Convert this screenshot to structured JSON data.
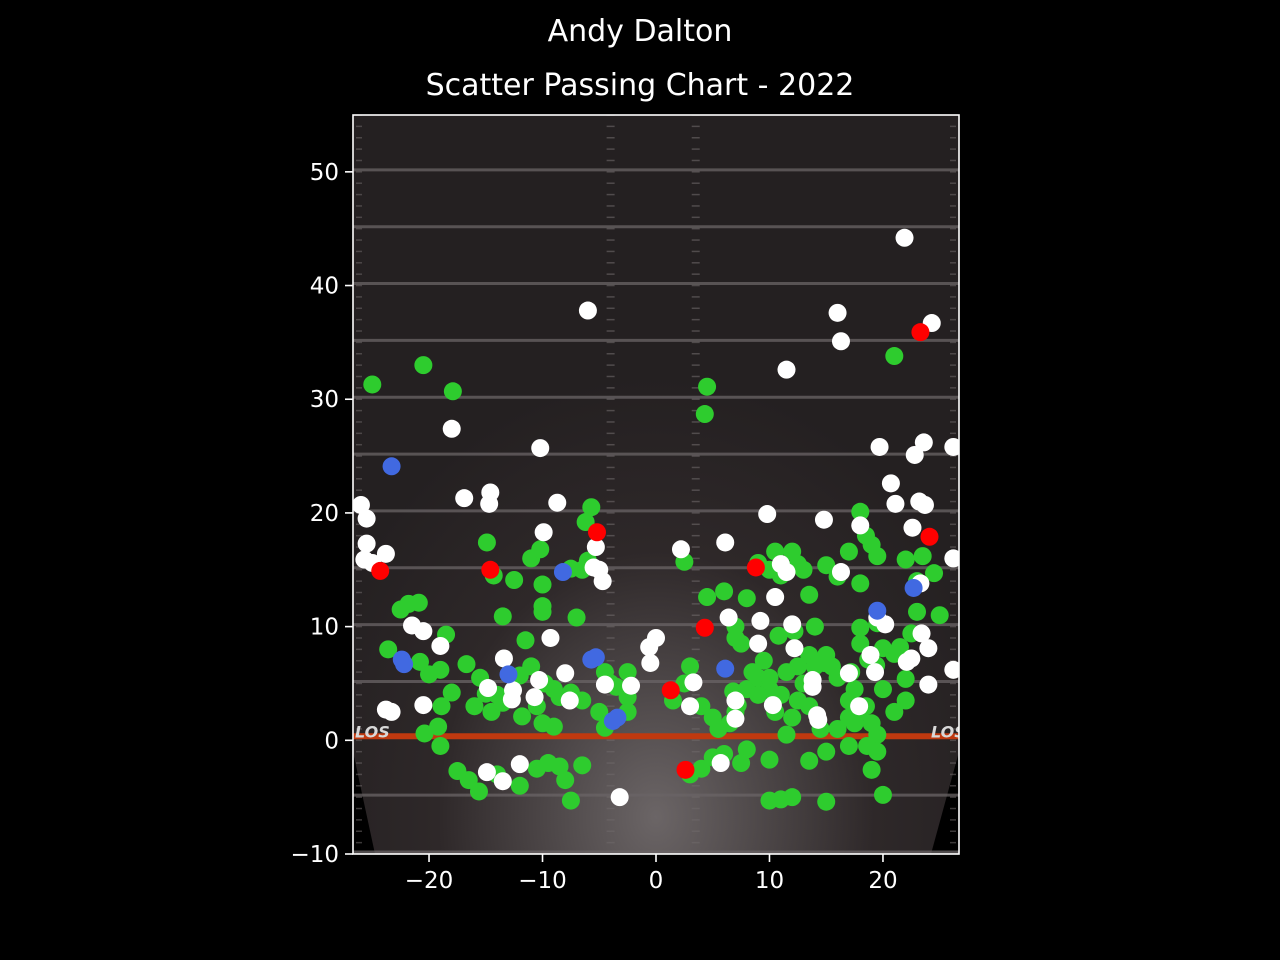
{
  "header": {
    "suptitle": "Andy Dalton",
    "title": "Scatter Passing Chart - 2022"
  },
  "field": {
    "los_text": "LOS"
  },
  "colors": {
    "complete": "#2ecc2e",
    "incomplete": "#ffffff",
    "interception": "#ff0000",
    "touchdown": "#4169e1",
    "los_line": "#c0390f",
    "yard_line": "#6a6466",
    "field_bg": "#2b2526"
  },
  "chart_data": {
    "type": "scatter",
    "title": "Scatter Passing Chart - 2022",
    "suptitle": "Andy Dalton",
    "xlabel": "",
    "ylabel": "",
    "xlim": [
      -26.7,
      26.7
    ],
    "ylim": [
      -10,
      55
    ],
    "xticks": [
      -20,
      -10,
      0,
      10,
      20
    ],
    "yticks": [
      -10,
      0,
      10,
      20,
      30,
      40,
      50
    ],
    "xtick_labels": [
      "−20",
      "−10",
      "0",
      "10",
      "20"
    ],
    "ytick_labels": [
      "−10",
      "0",
      "10",
      "20",
      "30",
      "40",
      "50"
    ],
    "grid": false,
    "legend": "none",
    "series": [
      {
        "color": "#2ecc2e",
        "points": [
          [
            -25,
            31.3
          ],
          [
            -20.5,
            33
          ],
          [
            -17.9,
            30.7
          ],
          [
            -14.9,
            17.4
          ],
          [
            -14.3,
            14.5
          ],
          [
            -12.5,
            14.1
          ],
          [
            -11,
            16
          ],
          [
            -10.2,
            16.8
          ],
          [
            -10,
            13.7
          ],
          [
            -10,
            11.8
          ],
          [
            -10,
            11.3
          ],
          [
            -7.5,
            15.1
          ],
          [
            -7,
            10.8
          ],
          [
            -6,
            15.8
          ],
          [
            -5.7,
            20.5
          ],
          [
            -6.2,
            19.2
          ],
          [
            -6.5,
            15
          ],
          [
            -21.8,
            12
          ],
          [
            -22.5,
            11.5
          ],
          [
            -20.9,
            12.1
          ],
          [
            -23.6,
            8
          ],
          [
            -20.8,
            6.9
          ],
          [
            -20,
            5.8
          ],
          [
            -18.5,
            9.3
          ],
          [
            -19,
            6.2
          ],
          [
            -15,
            4.1
          ],
          [
            -16.7,
            6.7
          ],
          [
            -13.5,
            10.9
          ],
          [
            -11.5,
            8.8
          ],
          [
            -11,
            6.5
          ],
          [
            -12,
            5.7
          ],
          [
            -10.5,
            3
          ],
          [
            -9.8,
            5
          ],
          [
            -9,
            4.5
          ],
          [
            -8.5,
            3.8
          ],
          [
            -7.5,
            4.2
          ],
          [
            -6.5,
            3.5
          ],
          [
            -5,
            2.5
          ],
          [
            -4.5,
            6
          ],
          [
            -4,
            5
          ],
          [
            -3.5,
            4.7
          ],
          [
            -2.5,
            6
          ],
          [
            -2.5,
            3.8
          ],
          [
            -4.5,
            1.1
          ],
          [
            -2.5,
            2.5
          ],
          [
            -16,
            3
          ],
          [
            -14.5,
            2.5
          ],
          [
            -13.5,
            3.3
          ],
          [
            -11.8,
            2.1
          ],
          [
            -10,
            1.5
          ],
          [
            -9,
            1.2
          ],
          [
            -20.4,
            0.6
          ],
          [
            -19.2,
            1.2
          ],
          [
            -19,
            -0.5
          ],
          [
            -17.5,
            -2.7
          ],
          [
            -16.5,
            -3.5
          ],
          [
            -15.6,
            -4.5
          ],
          [
            -14,
            -3
          ],
          [
            -12,
            -4
          ],
          [
            -10.5,
            -2.5
          ],
          [
            -9.5,
            -2
          ],
          [
            -8.5,
            -2.3
          ],
          [
            -8,
            -3.5
          ],
          [
            -7.5,
            -5.3
          ],
          [
            -6.5,
            -2.2
          ],
          [
            -18.9,
            3
          ],
          [
            -18,
            4.2
          ],
          [
            -15.5,
            5.5
          ],
          [
            -14,
            4
          ],
          [
            1.5,
            3.5
          ],
          [
            2.5,
            5
          ],
          [
            3,
            6.5
          ],
          [
            4,
            3
          ],
          [
            5,
            2
          ],
          [
            5.5,
            1
          ],
          [
            6.5,
            1.5
          ],
          [
            7,
            2.5
          ],
          [
            8,
            4.5
          ],
          [
            9,
            5.5
          ],
          [
            9.5,
            7
          ],
          [
            10,
            4.5
          ],
          [
            10.5,
            2.5
          ],
          [
            11,
            4
          ],
          [
            11.5,
            0.5
          ],
          [
            12,
            2
          ],
          [
            12.5,
            3.5
          ],
          [
            13,
            5
          ],
          [
            13.5,
            7.5
          ],
          [
            14,
            6.5
          ],
          [
            15,
            7.5
          ],
          [
            15.5,
            6.5
          ],
          [
            16,
            5.5
          ],
          [
            17,
            3.5
          ],
          [
            17.5,
            4.5
          ],
          [
            18,
            2.5
          ],
          [
            18.5,
            3
          ],
          [
            19,
            1.5
          ],
          [
            19.5,
            0.5
          ],
          [
            20,
            4.5
          ],
          [
            21,
            2.5
          ],
          [
            22,
            3.5
          ],
          [
            4.5,
            12.6
          ],
          [
            6,
            13.1
          ],
          [
            7,
            10
          ],
          [
            7.5,
            8.5
          ],
          [
            8,
            12.5
          ],
          [
            9,
            15.6
          ],
          [
            10,
            15
          ],
          [
            10.5,
            16.6
          ],
          [
            11,
            14.5
          ],
          [
            12,
            16.6
          ],
          [
            12.5,
            15.5
          ],
          [
            13,
            15
          ],
          [
            13.5,
            12.8
          ],
          [
            14,
            10
          ],
          [
            15,
            15.4
          ],
          [
            16,
            14.4
          ],
          [
            17,
            16.6
          ],
          [
            18,
            20.1
          ],
          [
            18.5,
            18
          ],
          [
            19,
            17.2
          ],
          [
            19.5,
            16.2
          ],
          [
            18,
            13.8
          ],
          [
            18,
            9.9
          ],
          [
            19.5,
            10.3
          ],
          [
            18,
            8.5
          ],
          [
            20,
            8.1
          ],
          [
            21,
            7.6
          ],
          [
            21.5,
            8.2
          ],
          [
            22,
            5.4
          ],
          [
            22.5,
            9.4
          ],
          [
            23,
            11.3
          ],
          [
            22,
            15.9
          ],
          [
            23.5,
            16.2
          ],
          [
            24.5,
            14.7
          ],
          [
            25,
            11
          ],
          [
            23,
            14
          ],
          [
            21,
            33.8
          ],
          [
            4.5,
            31.1
          ],
          [
            4.3,
            28.7
          ],
          [
            2.5,
            15.7
          ],
          [
            7,
            9
          ],
          [
            8.5,
            6
          ],
          [
            9,
            4
          ],
          [
            10,
            5.5
          ],
          [
            11.5,
            6
          ],
          [
            12.5,
            6.5
          ],
          [
            13.5,
            3
          ],
          [
            14.5,
            1
          ],
          [
            16,
            1
          ],
          [
            17,
            2
          ],
          [
            17.5,
            1.5
          ],
          [
            19,
            -0.5
          ],
          [
            19.5,
            -1
          ],
          [
            20,
            -4.8
          ],
          [
            19,
            -2.6
          ],
          [
            17,
            -0.5
          ],
          [
            15,
            -1
          ],
          [
            13.5,
            -1.8
          ],
          [
            12,
            -5
          ],
          [
            11,
            -5.2
          ],
          [
            10,
            -5.3
          ],
          [
            10,
            -1.7
          ],
          [
            8,
            -0.8
          ],
          [
            7.5,
            -2
          ],
          [
            6,
            -1.2
          ],
          [
            5,
            -1.5
          ],
          [
            4,
            -2.5
          ],
          [
            3,
            -3
          ],
          [
            15,
            -5.4
          ],
          [
            18.6,
            -0.5
          ],
          [
            6.8,
            4.3
          ],
          [
            7.2,
            3.1
          ],
          [
            10.8,
            9.2
          ],
          [
            12.2,
            9.6
          ],
          [
            14.8,
            6.8
          ],
          [
            17.2,
            6
          ],
          [
            18.7,
            7.1
          ],
          [
            19.4,
            6.6
          ]
        ]
      },
      {
        "color": "#ffffff",
        "points": [
          [
            -26,
            20.7
          ],
          [
            -25.5,
            19.5
          ],
          [
            -25.5,
            17.3
          ],
          [
            -25.7,
            15.9
          ],
          [
            -23.8,
            16.4
          ],
          [
            -25,
            15.6
          ],
          [
            -18,
            27.4
          ],
          [
            -16.9,
            21.3
          ],
          [
            -14.6,
            21.8
          ],
          [
            -14.7,
            20.8
          ],
          [
            -10.2,
            25.7
          ],
          [
            -8.7,
            20.9
          ],
          [
            -9.9,
            18.3
          ],
          [
            -6,
            37.8
          ],
          [
            -5.3,
            17
          ],
          [
            -5.5,
            15.2
          ],
          [
            -5,
            15
          ],
          [
            -4.7,
            14
          ],
          [
            -21.5,
            10.1
          ],
          [
            -20.5,
            9.6
          ],
          [
            -19,
            8.3
          ],
          [
            -14.8,
            4.6
          ],
          [
            -13.4,
            7.2
          ],
          [
            -12.6,
            4.4
          ],
          [
            -12.7,
            3.6
          ],
          [
            -10.3,
            5.3
          ],
          [
            -10.7,
            3.8
          ],
          [
            -9.3,
            9
          ],
          [
            -8,
            5.9
          ],
          [
            -7.6,
            3.5
          ],
          [
            -4.5,
            4.9
          ],
          [
            -2.2,
            4.8
          ],
          [
            -23.8,
            2.7
          ],
          [
            -23.3,
            2.5
          ],
          [
            -20.5,
            3.1
          ],
          [
            -14.9,
            -2.8
          ],
          [
            -13.5,
            -3.6
          ],
          [
            -12,
            -2.1
          ],
          [
            -3.2,
            -5
          ],
          [
            -0.6,
            8.2
          ],
          [
            0,
            9
          ],
          [
            -0.5,
            6.8
          ],
          [
            2.2,
            16.8
          ],
          [
            3,
            3
          ],
          [
            3.3,
            5.1
          ],
          [
            5.7,
            -2
          ],
          [
            6.1,
            17.4
          ],
          [
            6.4,
            10.8
          ],
          [
            7,
            3.5
          ],
          [
            7,
            1.9
          ],
          [
            9,
            8.5
          ],
          [
            9.2,
            10.5
          ],
          [
            9.8,
            19.9
          ],
          [
            10.3,
            3.1
          ],
          [
            10.5,
            12.6
          ],
          [
            11,
            15.5
          ],
          [
            11.5,
            14.8
          ],
          [
            11.5,
            32.6
          ],
          [
            12,
            10.2
          ],
          [
            12.2,
            8.1
          ],
          [
            13.8,
            5.3
          ],
          [
            13.8,
            4.7
          ],
          [
            14.2,
            2.2
          ],
          [
            14.3,
            1.8
          ],
          [
            14.8,
            19.4
          ],
          [
            16,
            37.6
          ],
          [
            16.3,
            35.1
          ],
          [
            16.3,
            14.8
          ],
          [
            17,
            5.9
          ],
          [
            17.9,
            3
          ],
          [
            18,
            18.9
          ],
          [
            18.9,
            7.5
          ],
          [
            19.3,
            6
          ],
          [
            19.5,
            10.8
          ],
          [
            19.7,
            25.8
          ],
          [
            20.2,
            10.2
          ],
          [
            20.7,
            22.6
          ],
          [
            21.1,
            20.8
          ],
          [
            21.9,
            44.2
          ],
          [
            22.1,
            6.9
          ],
          [
            22.5,
            7.2
          ],
          [
            22.6,
            18.7
          ],
          [
            22.8,
            25.1
          ],
          [
            23.2,
            21
          ],
          [
            23.3,
            13.8
          ],
          [
            23.4,
            9.4
          ],
          [
            23.6,
            26.2
          ],
          [
            23.7,
            20.7
          ],
          [
            24,
            8.1
          ],
          [
            24,
            4.9
          ],
          [
            24.3,
            36.7
          ],
          [
            26.2,
            25.8
          ],
          [
            26.2,
            16
          ],
          [
            26.2,
            6.2
          ]
        ]
      },
      {
        "color": "#ff0000",
        "points": [
          [
            -24.3,
            14.9
          ],
          [
            -14.6,
            15
          ],
          [
            -5.2,
            18.3
          ],
          [
            1.3,
            4.4
          ],
          [
            2.6,
            -2.6
          ],
          [
            4.3,
            9.9
          ],
          [
            8.8,
            15.2
          ],
          [
            23.3,
            35.9
          ],
          [
            24.1,
            17.9
          ]
        ]
      },
      {
        "color": "#4169e1",
        "points": [
          [
            -23.3,
            24.1
          ],
          [
            -22.4,
            7.1
          ],
          [
            -22.2,
            6.7
          ],
          [
            -13,
            5.8
          ],
          [
            -8.2,
            14.8
          ],
          [
            -5.7,
            7.1
          ],
          [
            -5.3,
            7.3
          ],
          [
            -3.8,
            1.7
          ],
          [
            -3.4,
            2
          ],
          [
            6.1,
            6.3
          ],
          [
            19.5,
            11.4
          ],
          [
            22.7,
            13.4
          ]
        ]
      }
    ]
  }
}
